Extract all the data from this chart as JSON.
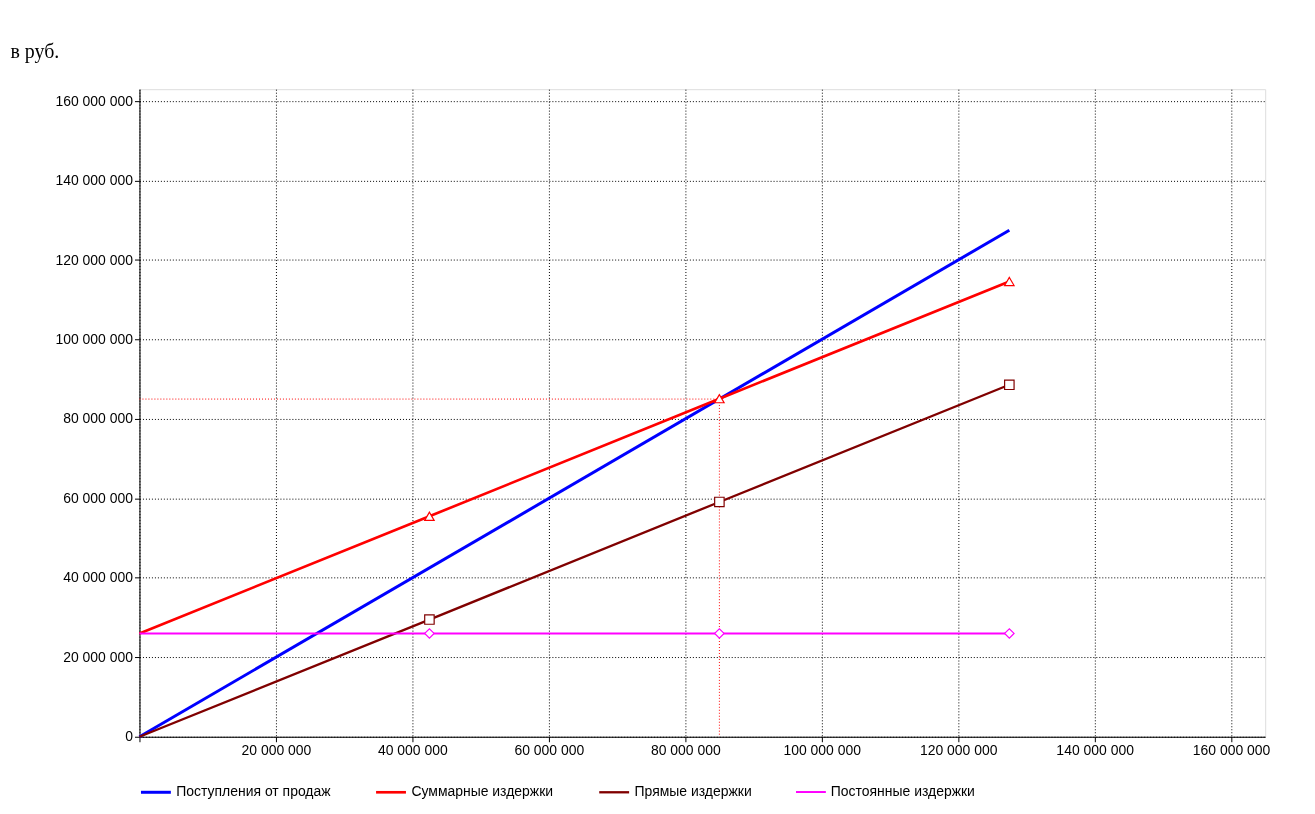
{
  "chart_data": {
    "type": "line",
    "ylabel": "в руб.",
    "xlim": [
      0,
      165000000
    ],
    "ylim": [
      0,
      163000000
    ],
    "xticks": [
      {
        "value": 0,
        "label": null
      },
      {
        "value": 20000000,
        "label": "20 000 000"
      },
      {
        "value": 40000000,
        "label": "40 000 000"
      },
      {
        "value": 60000000,
        "label": "60 000 000"
      },
      {
        "value": 80000000,
        "label": "80 000 000"
      },
      {
        "value": 100000000,
        "label": "100 000 000"
      },
      {
        "value": 120000000,
        "label": "120 000 000"
      },
      {
        "value": 140000000,
        "label": "140 000 000"
      },
      {
        "value": 160000000,
        "label": "160 000 000"
      }
    ],
    "yticks": [
      0,
      {
        "value": 20000000,
        "label": "20 000 000"
      },
      {
        "value": 40000000,
        "label": "40 000 000"
      },
      {
        "value": 60000000,
        "label": "60 000 000"
      },
      {
        "value": 80000000,
        "label": "80 000 000"
      },
      {
        "value": 100000000,
        "label": "100 000 000"
      },
      {
        "value": 120000000,
        "label": "120 000 000"
      },
      {
        "value": 140000000,
        "label": "140 000 000"
      },
      {
        "value": 160000000,
        "label": "160 000 000"
      }
    ],
    "grid": true,
    "legend": "bottom",
    "series": [
      {
        "name": "Поступления от продаж",
        "color": "#0000ff",
        "marker": "none",
        "x": [
          0,
          127500000
        ],
        "values": [
          0,
          127500000
        ]
      },
      {
        "name": "Суммарные издержки",
        "color": "#ff0000",
        "marker": "triangle",
        "x": [
          0,
          42500000,
          85000000,
          127500000
        ],
        "values": [
          26000000,
          55500000,
          85100000,
          114600000
        ]
      },
      {
        "name": "Прямые издержки",
        "color": "#800000",
        "marker": "square",
        "x": [
          0,
          42500000,
          85000000,
          127500000
        ],
        "values": [
          0,
          29500000,
          59100000,
          88600000
        ]
      },
      {
        "name": "Постоянные издержки",
        "color": "#ff00ff",
        "marker": "diamond",
        "x": [
          0,
          42500000,
          85000000,
          127500000
        ],
        "values": [
          26000000,
          26000000,
          26000000,
          26000000
        ]
      },
      {
        "color": "#ff0000",
        "marker": "none",
        "line_style": "dotted",
        "x": [
          0,
          85000000,
          85000000
        ],
        "values": [
          85000000,
          85000000,
          0
        ]
      }
    ]
  }
}
